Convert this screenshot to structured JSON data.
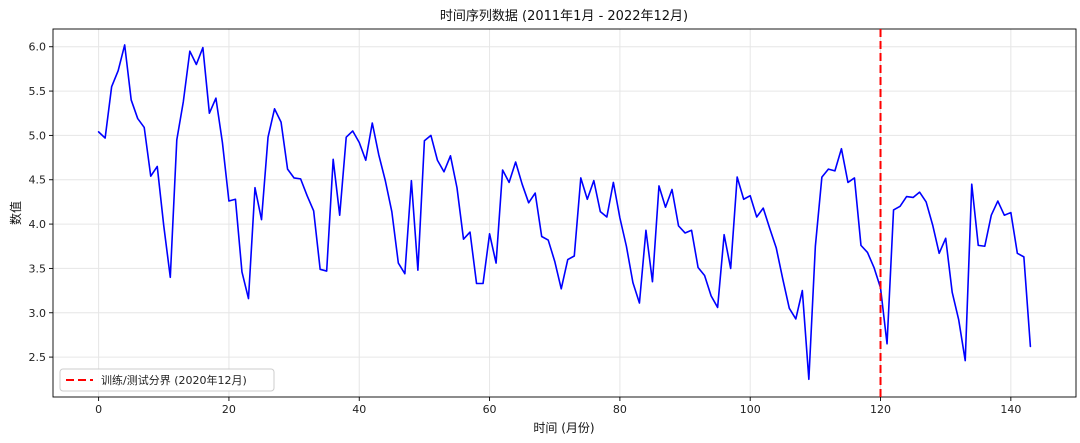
{
  "chart_data": {
    "type": "line",
    "title": "时间序列数据 (2011年1月 - 2022年12月)",
    "xlabel": "时间 (月份)",
    "ylabel": "数值",
    "xlim": [
      -7,
      150
    ],
    "ylim": [
      2.05,
      6.2
    ],
    "x_ticks": [
      0,
      20,
      40,
      60,
      80,
      100,
      120,
      140
    ],
    "y_ticks": [
      2.5,
      3.0,
      3.5,
      4.0,
      4.5,
      5.0,
      5.5,
      6.0
    ],
    "grid": true,
    "legend_position": "lower-left",
    "series": [
      {
        "color": "#0000ff",
        "y": [
          5.04,
          4.97,
          5.55,
          5.73,
          6.02,
          5.4,
          5.19,
          5.09,
          4.54,
          4.65,
          3.98,
          3.4,
          4.95,
          5.38,
          5.95,
          5.8,
          5.99,
          5.25,
          5.42,
          4.92,
          4.26,
          4.28,
          3.46,
          3.16,
          4.41,
          4.05,
          4.98,
          5.3,
          5.15,
          4.62,
          4.52,
          4.51,
          4.32,
          4.15,
          3.49,
          3.47,
          4.73,
          4.1,
          4.98,
          5.05,
          4.92,
          4.72,
          5.14,
          4.78,
          4.49,
          4.14,
          3.56,
          3.44,
          4.49,
          3.48,
          4.94,
          5.0,
          4.72,
          4.59,
          4.77,
          4.41,
          3.83,
          3.91,
          3.33,
          3.33,
          3.89,
          3.56,
          4.61,
          4.47,
          4.7,
          4.45,
          4.24,
          4.35,
          3.86,
          3.82,
          3.58,
          3.27,
          3.6,
          3.64,
          4.52,
          4.28,
          4.49,
          4.14,
          4.08,
          4.47,
          4.07,
          3.75,
          3.34,
          3.11,
          3.93,
          3.35,
          4.43,
          4.19,
          4.39,
          3.98,
          3.9,
          3.93,
          3.51,
          3.42,
          3.19,
          3.06,
          3.88,
          3.5,
          4.53,
          4.28,
          4.32,
          4.08,
          4.18,
          3.95,
          3.73,
          3.38,
          3.05,
          2.93,
          3.25,
          2.25,
          3.75,
          4.53,
          4.62,
          4.6,
          4.85,
          4.47,
          4.52,
          3.76,
          3.68,
          3.51,
          3.28,
          2.65,
          4.16,
          4.2,
          4.31,
          4.3,
          4.36,
          4.25,
          3.99,
          3.67,
          3.84,
          3.23,
          2.92,
          2.46,
          4.45,
          3.76,
          3.75,
          4.1,
          4.26,
          4.1,
          4.13,
          3.67,
          3.63,
          2.62
        ]
      }
    ],
    "vline": {
      "x": 120,
      "color": "#ff0000",
      "label": "训练/测试分界 (2020年12月)"
    }
  }
}
